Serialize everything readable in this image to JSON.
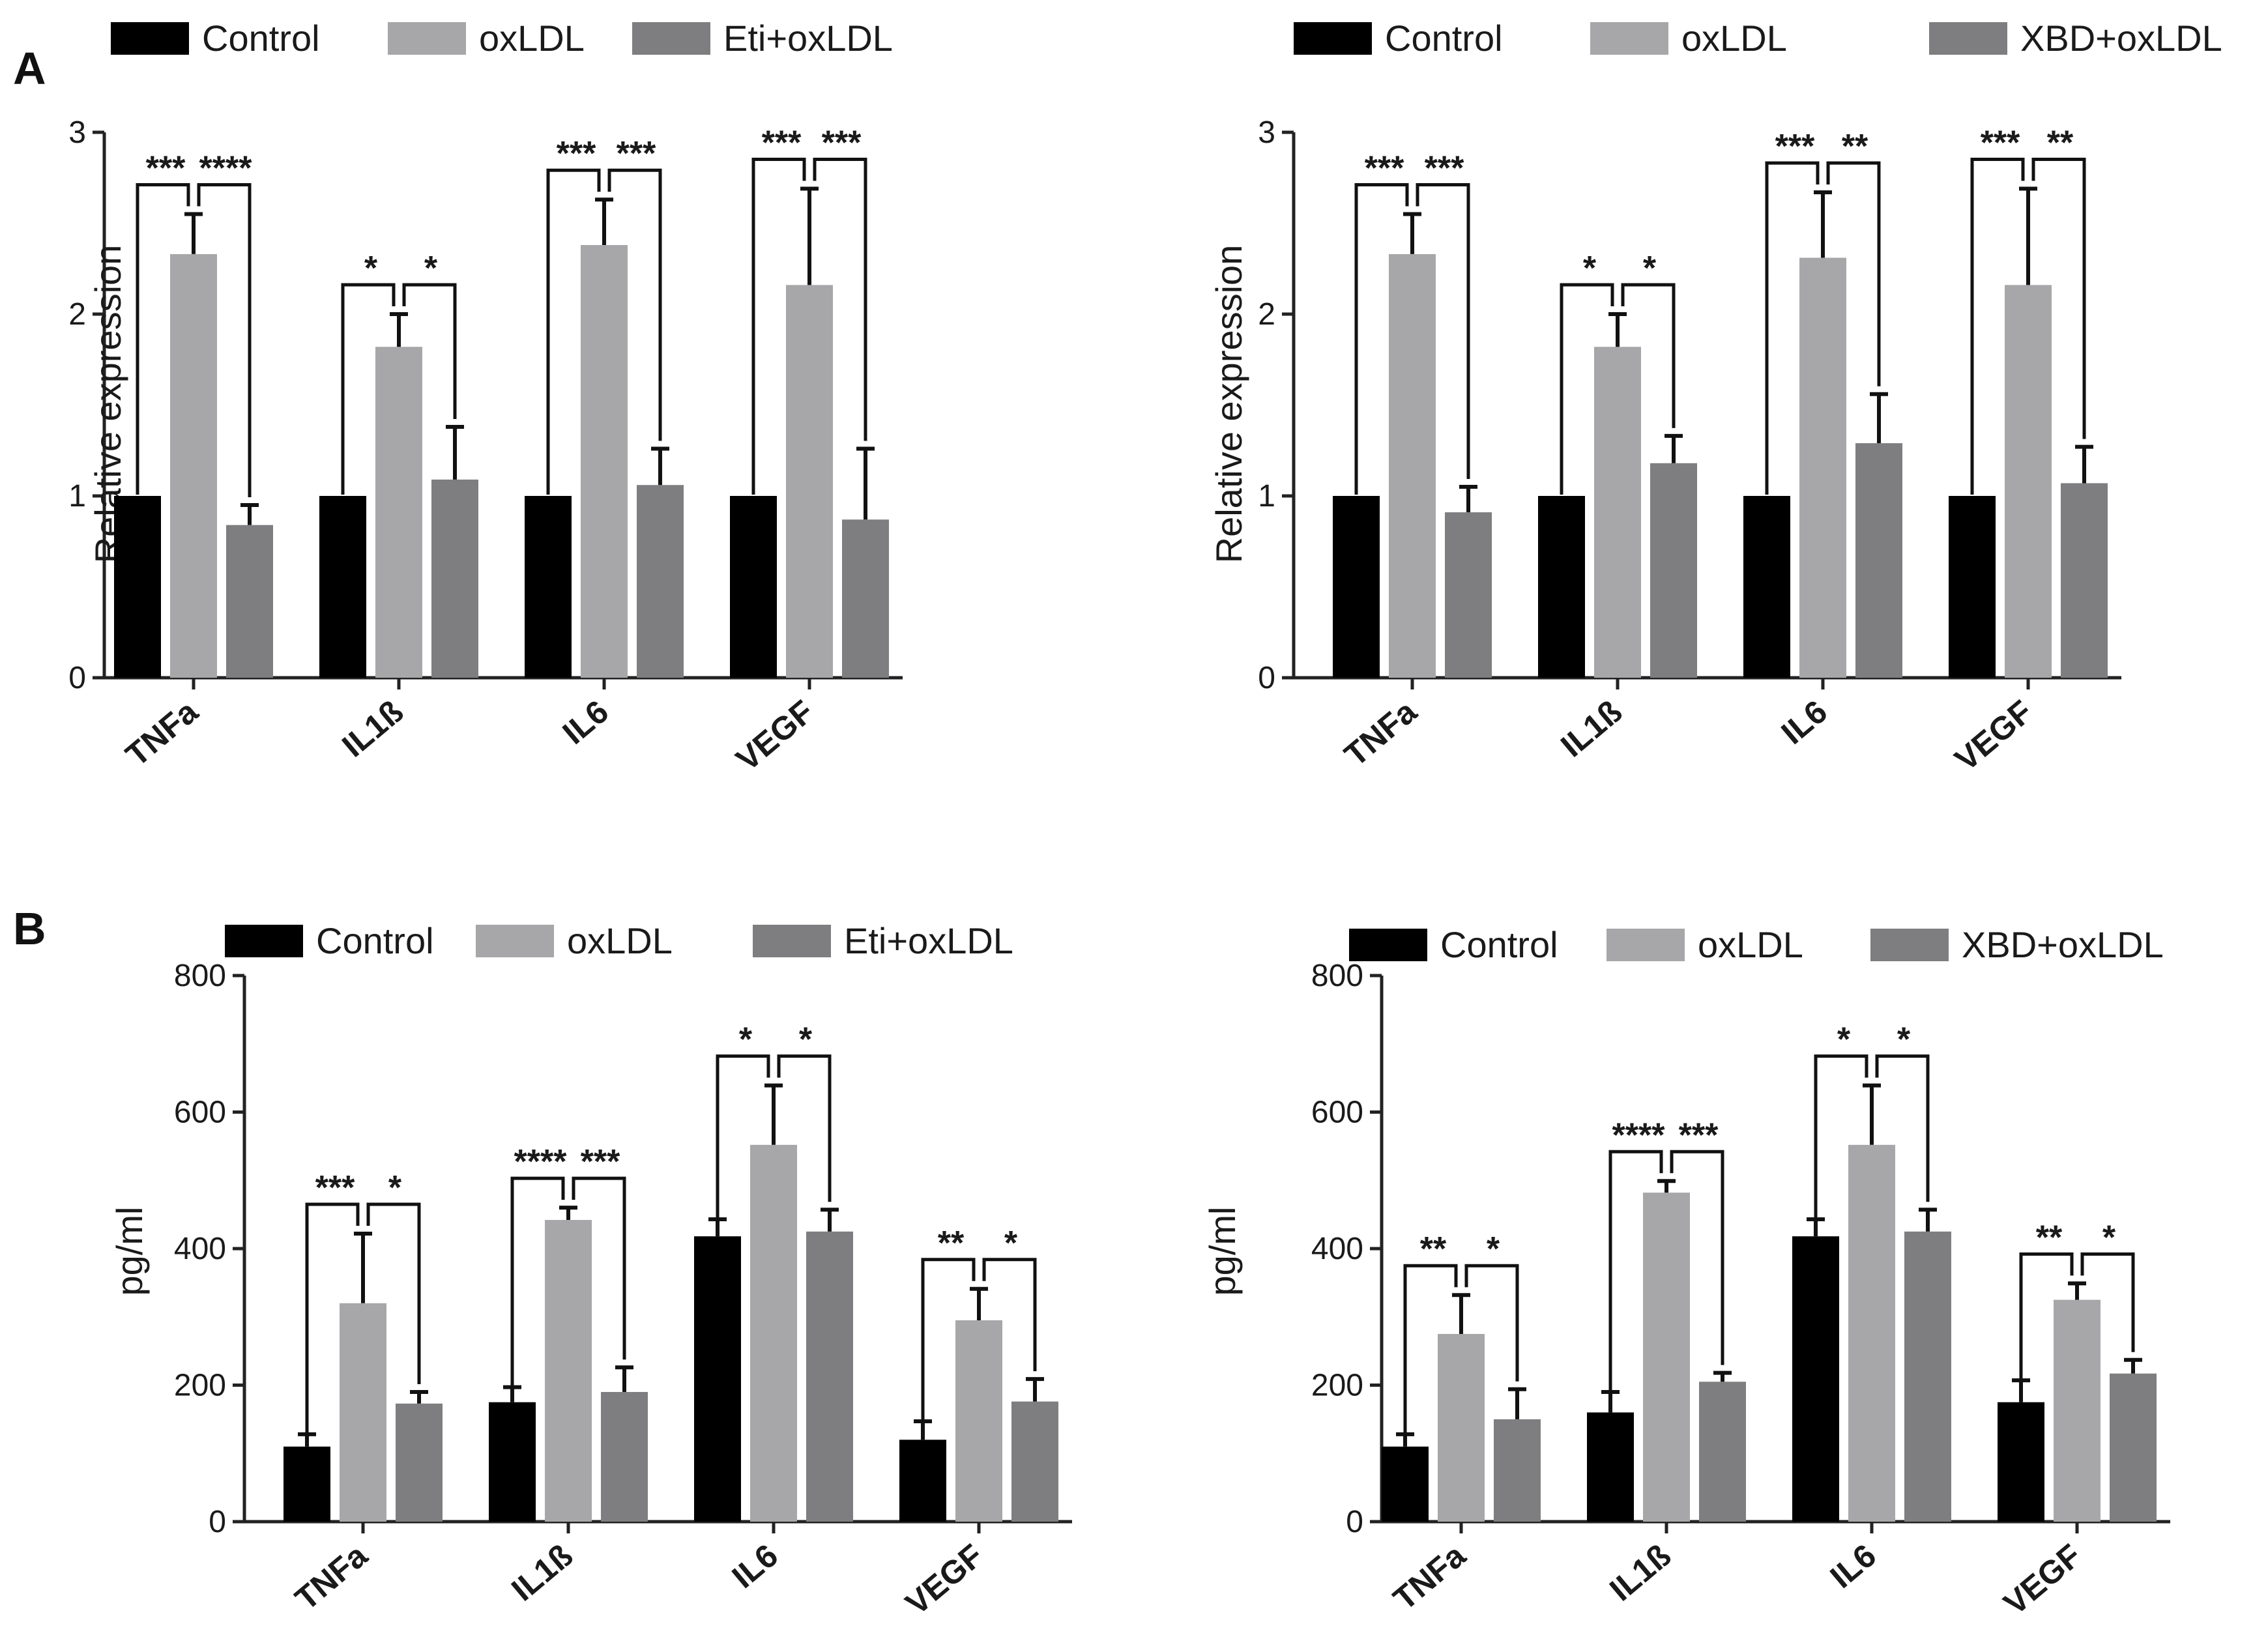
{
  "panels": [
    {
      "letter": "A"
    },
    {
      "letter": "B"
    }
  ],
  "colors": {
    "Control": "#000000",
    "oxLDL": "#a7a7aa",
    "treated": "#7e7e80",
    "error": "#111111"
  },
  "chart_data": [
    {
      "type": "bar",
      "panel": "A",
      "ylabel": "Relative expression",
      "ylim": [
        0,
        3
      ],
      "yticks": [
        "0",
        "1",
        "2",
        "3"
      ],
      "categories": [
        "TNFa",
        "IL1ß",
        "IL6",
        "VEGF"
      ],
      "series": [
        {
          "name": "Control",
          "values": [
            1.0,
            1.0,
            1.0,
            1.0
          ],
          "errors": [
            0,
            0,
            0,
            0
          ]
        },
        {
          "name": "oxLDL",
          "values": [
            2.33,
            1.82,
            2.38,
            2.16
          ],
          "errors": [
            0.22,
            0.18,
            0.25,
            0.53
          ]
        },
        {
          "name": "Eti+oxLDL",
          "values": [
            0.84,
            1.09,
            1.06,
            0.87
          ],
          "errors": [
            0.11,
            0.29,
            0.2,
            0.39
          ]
        }
      ],
      "significance": [
        {
          "left": "***",
          "right": "****"
        },
        {
          "left": "*",
          "right": "*"
        },
        {
          "left": "***",
          "right": "***"
        },
        {
          "left": "***",
          "right": "***"
        }
      ]
    },
    {
      "type": "bar",
      "panel": "A",
      "ylabel": "Relative expression",
      "ylim": [
        0,
        3
      ],
      "yticks": [
        "0",
        "1",
        "2",
        "3"
      ],
      "categories": [
        "TNFa",
        "IL1ß",
        "IL6",
        "VEGF"
      ],
      "series": [
        {
          "name": "Control",
          "values": [
            1.0,
            1.0,
            1.0,
            1.0
          ],
          "errors": [
            0,
            0,
            0,
            0
          ]
        },
        {
          "name": "oxLDL",
          "values": [
            2.33,
            1.82,
            2.31,
            2.16
          ],
          "errors": [
            0.22,
            0.18,
            0.36,
            0.53
          ]
        },
        {
          "name": "XBD+oxLDL",
          "values": [
            0.91,
            1.18,
            1.29,
            1.07
          ],
          "errors": [
            0.14,
            0.15,
            0.27,
            0.2
          ]
        }
      ],
      "significance": [
        {
          "left": "***",
          "right": "***"
        },
        {
          "left": "*",
          "right": "*"
        },
        {
          "left": "***",
          "right": "**"
        },
        {
          "left": "***",
          "right": "**"
        }
      ]
    },
    {
      "type": "bar",
      "panel": "B",
      "ylabel": "pg/ml",
      "ylim": [
        0,
        800
      ],
      "yticks": [
        "0",
        "200",
        "400",
        "600",
        "800"
      ],
      "categories": [
        "TNFa",
        "IL1ß",
        "IL6",
        "VEGF"
      ],
      "series": [
        {
          "name": "Control",
          "values": [
            110,
            175,
            418,
            120
          ],
          "errors": [
            18,
            22,
            25,
            27
          ]
        },
        {
          "name": "oxLDL",
          "values": [
            320,
            442,
            552,
            295
          ],
          "errors": [
            102,
            18,
            87,
            46
          ]
        },
        {
          "name": "Eti+oxLDL",
          "values": [
            173,
            190,
            425,
            176
          ],
          "errors": [
            17,
            36,
            32,
            33
          ]
        }
      ],
      "significance": [
        {
          "left": "***",
          "right": "*"
        },
        {
          "left": "****",
          "right": "***"
        },
        {
          "left": "*",
          "right": "*"
        },
        {
          "left": "**",
          "right": "*"
        }
      ]
    },
    {
      "type": "bar",
      "panel": "B",
      "ylabel": "pg/ml",
      "ylim": [
        0,
        800
      ],
      "yticks": [
        "0",
        "200",
        "400",
        "600",
        "800"
      ],
      "categories": [
        "TNFa",
        "IL1ß",
        "IL6",
        "VEGF"
      ],
      "series": [
        {
          "name": "Control",
          "values": [
            110,
            160,
            418,
            175
          ],
          "errors": [
            18,
            30,
            25,
            32
          ]
        },
        {
          "name": "oxLDL",
          "values": [
            275,
            482,
            552,
            325
          ],
          "errors": [
            57,
            17,
            87,
            24
          ]
        },
        {
          "name": "XBD+oxLDL",
          "values": [
            150,
            205,
            425,
            217
          ],
          "errors": [
            44,
            13,
            32,
            20
          ]
        }
      ],
      "significance": [
        {
          "left": "**",
          "right": "*"
        },
        {
          "left": "****",
          "right": "***"
        },
        {
          "left": "*",
          "right": "*"
        },
        {
          "left": "**",
          "right": "*"
        }
      ]
    }
  ]
}
